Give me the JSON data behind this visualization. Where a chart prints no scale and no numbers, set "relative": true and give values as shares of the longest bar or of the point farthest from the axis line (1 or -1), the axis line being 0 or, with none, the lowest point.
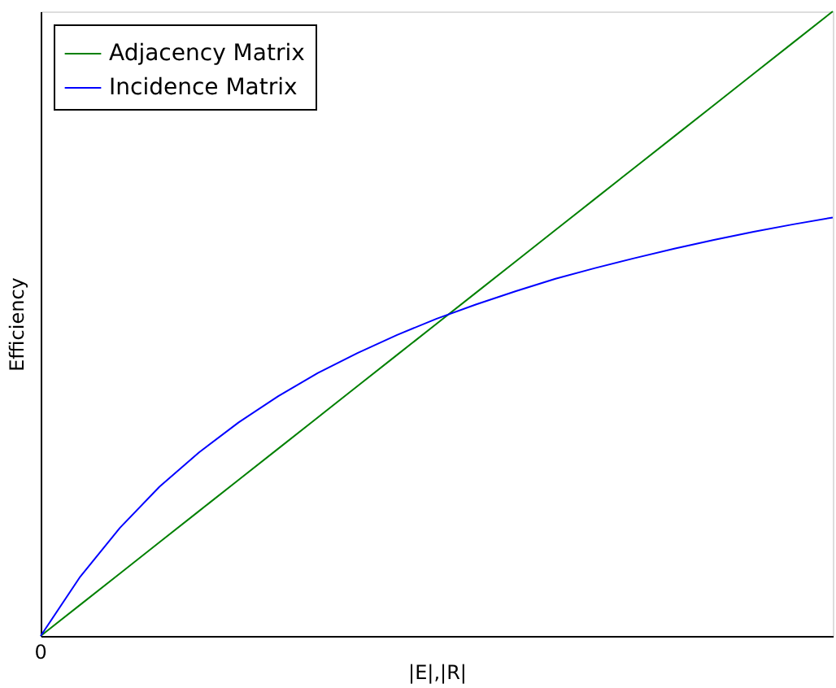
{
  "chart_data": {
    "type": "line",
    "relative": true,
    "xlabel": "|E|,|R|",
    "ylabel": "Efficiency",
    "legend": "top left",
    "grid": false,
    "annotations": [
      "0"
    ],
    "categories": [
      null,
      null,
      null,
      null,
      null,
      null,
      null,
      null,
      null,
      null,
      null,
      null,
      null,
      null,
      null,
      null,
      null,
      null,
      null,
      null,
      null
    ],
    "series": [
      {
        "name": "Adjacency Matrix",
        "color": "#008000",
        "values": [
          0,
          0.05,
          0.1,
          0.15,
          0.2,
          0.25,
          0.3,
          0.35,
          0.4,
          0.45,
          0.5,
          0.55,
          0.6,
          0.65,
          0.7,
          0.75,
          0.8,
          0.85,
          0.9,
          0.95,
          1
        ]
      },
      {
        "name": "Incidence Matrix",
        "color": "#0000ff",
        "values": [
          0,
          0.095,
          0.173,
          0.239,
          0.294,
          0.342,
          0.384,
          0.421,
          0.453,
          0.482,
          0.508,
          0.531,
          0.552,
          0.572,
          0.589,
          0.605,
          0.62,
          0.634,
          0.647,
          0.659,
          0.67
        ]
      }
    ]
  }
}
